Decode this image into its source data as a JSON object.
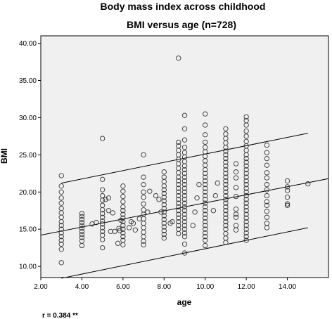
{
  "chart_data": {
    "type": "scatter",
    "title": "Body mass index across childhood",
    "subtitle": "BMI versus age (n=728)",
    "xlabel": "age",
    "ylabel": "BMI",
    "xlim": [
      2.0,
      16.0
    ],
    "ylim": [
      8.5,
      41.0
    ],
    "xticks": [
      2.0,
      4.0,
      6.0,
      8.0,
      10.0,
      12.0,
      14.0
    ],
    "xtick_labels": [
      "2.00",
      "4.00",
      "6.00",
      "8.00",
      "10.00",
      "12.00",
      "14.00"
    ],
    "yticks": [
      10.0,
      15.0,
      20.0,
      25.0,
      30.0,
      35.0,
      40.0
    ],
    "ytick_labels": [
      "10.00",
      "15.00",
      "20.00",
      "25.00",
      "30.00",
      "35.00",
      "40.00"
    ],
    "grid": false,
    "footnote": "r = 0.384 **",
    "fit_lines": [
      {
        "x": [
          3.0,
          15.0
        ],
        "y": [
          21.2,
          27.9
        ]
      },
      {
        "x": [
          2.0,
          16.0
        ],
        "y": [
          14.2,
          21.8
        ]
      },
      {
        "x": [
          3.0,
          15.0
        ],
        "y": [
          8.4,
          15.2
        ]
      }
    ],
    "points": [
      [
        3.0,
        10.5
      ],
      [
        3.0,
        12.3
      ],
      [
        3.0,
        13.0
      ],
      [
        3.0,
        13.5
      ],
      [
        3.0,
        14.0
      ],
      [
        3.0,
        14.5
      ],
      [
        3.0,
        15.0
      ],
      [
        3.0,
        15.5
      ],
      [
        3.0,
        16.0
      ],
      [
        3.0,
        16.6
      ],
      [
        3.0,
        17.2
      ],
      [
        3.0,
        17.8
      ],
      [
        3.0,
        18.5
      ],
      [
        3.0,
        19.2
      ],
      [
        3.0,
        20.0
      ],
      [
        3.0,
        20.8
      ],
      [
        3.0,
        22.2
      ],
      [
        4.0,
        12.8
      ],
      [
        4.0,
        13.4
      ],
      [
        4.0,
        13.9
      ],
      [
        4.0,
        14.3
      ],
      [
        4.0,
        14.7
      ],
      [
        4.0,
        15.1
      ],
      [
        4.0,
        15.5
      ],
      [
        4.0,
        15.9
      ],
      [
        4.0,
        16.3
      ],
      [
        4.0,
        16.7
      ],
      [
        4.0,
        17.1
      ],
      [
        4.5,
        15.7
      ],
      [
        4.7,
        15.9
      ],
      [
        5.0,
        12.5
      ],
      [
        5.0,
        13.6
      ],
      [
        5.0,
        14.2
      ],
      [
        5.0,
        14.7
      ],
      [
        5.0,
        15.2
      ],
      [
        5.0,
        15.7
      ],
      [
        5.0,
        16.1
      ],
      [
        5.0,
        16.6
      ],
      [
        5.0,
        17.1
      ],
      [
        5.0,
        17.6
      ],
      [
        5.0,
        18.2
      ],
      [
        5.0,
        18.9
      ],
      [
        5.0,
        19.5
      ],
      [
        5.0,
        20.3
      ],
      [
        5.0,
        21.7
      ],
      [
        5.0,
        27.2
      ],
      [
        5.15,
        19.0
      ],
      [
        5.3,
        17.5
      ],
      [
        5.4,
        14.7
      ],
      [
        5.6,
        14.7
      ],
      [
        5.3,
        19.2
      ],
      [
        5.5,
        17.2
      ],
      [
        5.75,
        13.1
      ],
      [
        5.8,
        15.1
      ],
      [
        5.9,
        16.2
      ],
      [
        5.85,
        14.8
      ],
      [
        6.0,
        12.9
      ],
      [
        6.0,
        13.5
      ],
      [
        6.0,
        14.0
      ],
      [
        6.0,
        14.5
      ],
      [
        6.0,
        15.0
      ],
      [
        6.0,
        15.5
      ],
      [
        6.0,
        16.0
      ],
      [
        6.0,
        16.5
      ],
      [
        6.0,
        17.0
      ],
      [
        6.0,
        17.5
      ],
      [
        6.0,
        18.0
      ],
      [
        6.0,
        18.7
      ],
      [
        6.0,
        19.4
      ],
      [
        6.0,
        20.1
      ],
      [
        6.0,
        20.8
      ],
      [
        6.3,
        15.2
      ],
      [
        6.4,
        16.0
      ],
      [
        6.5,
        15.8
      ],
      [
        6.6,
        14.9
      ],
      [
        6.8,
        16.4
      ],
      [
        7.0,
        12.9
      ],
      [
        7.0,
        13.4
      ],
      [
        7.0,
        14.0
      ],
      [
        7.0,
        14.6
      ],
      [
        7.0,
        15.2
      ],
      [
        7.0,
        15.8
      ],
      [
        7.0,
        16.4
      ],
      [
        7.0,
        17.0
      ],
      [
        7.0,
        17.6
      ],
      [
        7.0,
        18.4
      ],
      [
        7.0,
        19.3
      ],
      [
        7.0,
        20.0
      ],
      [
        7.0,
        21.0
      ],
      [
        7.0,
        22.0
      ],
      [
        7.0,
        25.0
      ],
      [
        7.2,
        17.3
      ],
      [
        7.3,
        20.1
      ],
      [
        7.6,
        19.5
      ],
      [
        7.75,
        19.0
      ],
      [
        7.85,
        17.3
      ],
      [
        8.0,
        13.8
      ],
      [
        8.0,
        14.3
      ],
      [
        8.0,
        14.8
      ],
      [
        8.0,
        15.3
      ],
      [
        8.0,
        15.8
      ],
      [
        8.0,
        16.3
      ],
      [
        8.0,
        16.8
      ],
      [
        8.0,
        17.3
      ],
      [
        8.0,
        17.8
      ],
      [
        8.0,
        18.3
      ],
      [
        8.0,
        18.8
      ],
      [
        8.0,
        19.3
      ],
      [
        8.0,
        19.8
      ],
      [
        8.0,
        20.3
      ],
      [
        8.0,
        20.8
      ],
      [
        8.0,
        21.4
      ],
      [
        8.0,
        22.0
      ],
      [
        8.0,
        22.7
      ],
      [
        8.3,
        15.8
      ],
      [
        8.4,
        16.0
      ],
      [
        8.7,
        14.4
      ],
      [
        8.7,
        15.0
      ],
      [
        8.7,
        15.5
      ],
      [
        8.7,
        16.0
      ],
      [
        8.7,
        16.5
      ],
      [
        8.7,
        17.0
      ],
      [
        8.7,
        17.5
      ],
      [
        8.7,
        18.0
      ],
      [
        8.7,
        18.5
      ],
      [
        8.7,
        19.0
      ],
      [
        8.7,
        19.5
      ],
      [
        8.7,
        20.0
      ],
      [
        8.7,
        20.5
      ],
      [
        8.7,
        21.0
      ],
      [
        8.7,
        21.5
      ],
      [
        8.7,
        22.0
      ],
      [
        8.7,
        22.6
      ],
      [
        8.7,
        23.2
      ],
      [
        8.7,
        23.8
      ],
      [
        8.7,
        24.4
      ],
      [
        8.7,
        25.0
      ],
      [
        8.7,
        25.6
      ],
      [
        8.7,
        26.2
      ],
      [
        8.7,
        26.7
      ],
      [
        8.7,
        38.0
      ],
      [
        9.0,
        11.8
      ],
      [
        9.0,
        13.0
      ],
      [
        9.0,
        14.0
      ],
      [
        9.0,
        14.5
      ],
      [
        9.0,
        15.0
      ],
      [
        9.0,
        15.5
      ],
      [
        9.0,
        16.0
      ],
      [
        9.0,
        16.5
      ],
      [
        9.0,
        17.0
      ],
      [
        9.0,
        17.5
      ],
      [
        9.0,
        18.0
      ],
      [
        9.0,
        18.5
      ],
      [
        9.0,
        19.0
      ],
      [
        9.0,
        19.5
      ],
      [
        9.0,
        20.0
      ],
      [
        9.0,
        20.5
      ],
      [
        9.0,
        21.0
      ],
      [
        9.0,
        21.5
      ],
      [
        9.0,
        22.0
      ],
      [
        9.0,
        22.5
      ],
      [
        9.0,
        23.0
      ],
      [
        9.0,
        23.5
      ],
      [
        9.0,
        24.1
      ],
      [
        9.0,
        24.7
      ],
      [
        9.0,
        25.3
      ],
      [
        9.0,
        26.0
      ],
      [
        9.0,
        27.0
      ],
      [
        9.0,
        28.5
      ],
      [
        9.0,
        30.3
      ],
      [
        9.4,
        15.5
      ],
      [
        9.5,
        17.3
      ],
      [
        9.6,
        19.2
      ],
      [
        9.7,
        21.0
      ],
      [
        10.0,
        12.8
      ],
      [
        10.0,
        13.5
      ],
      [
        10.0,
        14.0
      ],
      [
        10.0,
        14.5
      ],
      [
        10.0,
        15.0
      ],
      [
        10.0,
        15.5
      ],
      [
        10.0,
        16.0
      ],
      [
        10.0,
        16.5
      ],
      [
        10.0,
        17.0
      ],
      [
        10.0,
        17.5
      ],
      [
        10.0,
        18.0
      ],
      [
        10.0,
        18.5
      ],
      [
        10.0,
        19.0
      ],
      [
        10.0,
        19.5
      ],
      [
        10.0,
        20.0
      ],
      [
        10.0,
        20.5
      ],
      [
        10.0,
        21.0
      ],
      [
        10.0,
        21.5
      ],
      [
        10.0,
        22.0
      ],
      [
        10.0,
        22.5
      ],
      [
        10.0,
        23.0
      ],
      [
        10.0,
        23.6
      ],
      [
        10.0,
        24.2
      ],
      [
        10.0,
        24.8
      ],
      [
        10.0,
        25.4
      ],
      [
        10.0,
        26.0
      ],
      [
        10.0,
        26.7
      ],
      [
        10.0,
        27.7
      ],
      [
        10.0,
        29.0
      ],
      [
        10.0,
        30.5
      ],
      [
        10.4,
        17.5
      ],
      [
        10.5,
        19.5
      ],
      [
        10.6,
        21.2
      ],
      [
        11.0,
        13.2
      ],
      [
        11.0,
        13.8
      ],
      [
        11.0,
        14.4
      ],
      [
        11.0,
        15.0
      ],
      [
        11.0,
        15.5
      ],
      [
        11.0,
        16.0
      ],
      [
        11.0,
        16.5
      ],
      [
        11.0,
        17.0
      ],
      [
        11.0,
        17.5
      ],
      [
        11.0,
        18.0
      ],
      [
        11.0,
        18.5
      ],
      [
        11.0,
        19.0
      ],
      [
        11.0,
        19.5
      ],
      [
        11.0,
        20.0
      ],
      [
        11.0,
        20.5
      ],
      [
        11.0,
        21.0
      ],
      [
        11.0,
        21.5
      ],
      [
        11.0,
        22.0
      ],
      [
        11.0,
        22.5
      ],
      [
        11.0,
        23.0
      ],
      [
        11.0,
        23.5
      ],
      [
        11.0,
        24.0
      ],
      [
        11.0,
        24.5
      ],
      [
        11.0,
        25.0
      ],
      [
        11.0,
        25.5
      ],
      [
        11.0,
        26.0
      ],
      [
        11.0,
        26.6
      ],
      [
        11.0,
        27.2
      ],
      [
        11.0,
        27.8
      ],
      [
        11.0,
        28.5
      ],
      [
        11.5,
        14.9
      ],
      [
        11.5,
        15.5
      ],
      [
        11.5,
        16.6
      ],
      [
        11.5,
        17.0
      ],
      [
        11.5,
        17.7
      ],
      [
        11.5,
        19.4
      ],
      [
        11.5,
        20.6
      ],
      [
        11.5,
        21.9
      ],
      [
        11.5,
        22.7
      ],
      [
        11.5,
        23.8
      ],
      [
        12.0,
        13.5
      ],
      [
        12.0,
        14.0
      ],
      [
        12.0,
        14.5
      ],
      [
        12.0,
        15.0
      ],
      [
        12.0,
        15.5
      ],
      [
        12.0,
        16.0
      ],
      [
        12.0,
        16.5
      ],
      [
        12.0,
        17.0
      ],
      [
        12.0,
        17.5
      ],
      [
        12.0,
        18.0
      ],
      [
        12.0,
        18.5
      ],
      [
        12.0,
        19.0
      ],
      [
        12.0,
        19.5
      ],
      [
        12.0,
        20.0
      ],
      [
        12.0,
        20.5
      ],
      [
        12.0,
        21.0
      ],
      [
        12.0,
        21.5
      ],
      [
        12.0,
        22.0
      ],
      [
        12.0,
        22.5
      ],
      [
        12.0,
        23.0
      ],
      [
        12.0,
        23.5
      ],
      [
        12.0,
        24.0
      ],
      [
        12.0,
        24.5
      ],
      [
        12.0,
        25.0
      ],
      [
        12.0,
        25.6
      ],
      [
        12.0,
        26.2
      ],
      [
        12.0,
        26.8
      ],
      [
        12.0,
        27.5
      ],
      [
        12.0,
        28.2
      ],
      [
        12.0,
        29.0
      ],
      [
        12.0,
        29.6
      ],
      [
        12.0,
        30.1
      ],
      [
        13.0,
        15.2
      ],
      [
        13.0,
        15.8
      ],
      [
        13.0,
        16.6
      ],
      [
        13.0,
        17.4
      ],
      [
        13.0,
        18.2
      ],
      [
        13.0,
        18.7
      ],
      [
        13.0,
        19.5
      ],
      [
        13.0,
        20.3
      ],
      [
        13.0,
        21.0
      ],
      [
        13.0,
        21.9
      ],
      [
        13.0,
        22.6
      ],
      [
        13.0,
        23.6
      ],
      [
        13.0,
        24.5
      ],
      [
        13.0,
        25.3
      ],
      [
        13.0,
        26.3
      ],
      [
        14.0,
        18.2
      ],
      [
        14.0,
        18.4
      ],
      [
        14.0,
        19.3
      ],
      [
        14.0,
        20.2
      ],
      [
        14.0,
        20.7
      ],
      [
        14.0,
        21.5
      ],
      [
        15.0,
        21.1
      ]
    ]
  }
}
